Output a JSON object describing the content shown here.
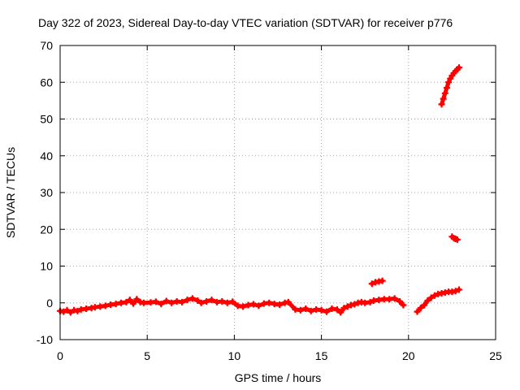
{
  "chart_data": {
    "type": "scatter",
    "title": "Day 322 of 2023, Sidereal Day-to-day VTEC variation (SDTVAR) for receiver p776",
    "xlabel": "GPS time / hours",
    "ylabel": "SDTVAR / TECUs",
    "xlim": [
      0,
      25
    ],
    "ylim": [
      -10,
      70
    ],
    "xticks": [
      "0",
      "5",
      "10",
      "15",
      "20",
      "25"
    ],
    "yticks": [
      "-10",
      "0",
      "10",
      "20",
      "30",
      "40",
      "50",
      "60",
      "70"
    ],
    "grid": true,
    "marker": "plus",
    "series": [
      {
        "color": "#ff0000",
        "points": [
          [
            0.0,
            -2.2
          ],
          [
            0.2,
            -2.4
          ],
          [
            0.4,
            -2.0
          ],
          [
            0.6,
            -2.6
          ],
          [
            0.8,
            -2.0
          ],
          [
            1.0,
            -2.2
          ],
          [
            1.2,
            -1.8
          ],
          [
            1.5,
            -1.6
          ],
          [
            1.8,
            -1.4
          ],
          [
            2.0,
            -1.2
          ],
          [
            2.3,
            -1.0
          ],
          [
            2.6,
            -0.8
          ],
          [
            2.9,
            -0.5
          ],
          [
            3.2,
            -0.3
          ],
          [
            3.5,
            0.0
          ],
          [
            3.8,
            0.2
          ],
          [
            4.0,
            0.8
          ],
          [
            4.2,
            -0.2
          ],
          [
            4.4,
            1.0
          ],
          [
            4.6,
            0.2
          ],
          [
            4.8,
            0.0
          ],
          [
            5.2,
            0.1
          ],
          [
            5.5,
            0.3
          ],
          [
            5.8,
            -0.3
          ],
          [
            6.1,
            0.5
          ],
          [
            6.4,
            0.0
          ],
          [
            6.7,
            0.4
          ],
          [
            7.0,
            0.2
          ],
          [
            7.3,
            0.8
          ],
          [
            7.6,
            1.2
          ],
          [
            7.9,
            0.6
          ],
          [
            8.1,
            0.0
          ],
          [
            8.4,
            0.4
          ],
          [
            8.7,
            0.8
          ],
          [
            9.0,
            0.2
          ],
          [
            9.3,
            0.4
          ],
          [
            9.6,
            0.0
          ],
          [
            9.9,
            0.3
          ],
          [
            10.2,
            -0.8
          ],
          [
            10.5,
            -1.0
          ],
          [
            10.8,
            -0.6
          ],
          [
            11.1,
            -0.4
          ],
          [
            11.4,
            -0.8
          ],
          [
            11.7,
            -0.2
          ],
          [
            12.0,
            0.0
          ],
          [
            12.3,
            -0.3
          ],
          [
            12.6,
            -0.5
          ],
          [
            12.9,
            0.0
          ],
          [
            13.1,
            0.2
          ],
          [
            13.5,
            -1.8
          ],
          [
            13.8,
            -2.0
          ],
          [
            14.1,
            -1.6
          ],
          [
            14.4,
            -2.2
          ],
          [
            14.7,
            -1.8
          ],
          [
            15.0,
            -2.0
          ],
          [
            15.3,
            -2.4
          ],
          [
            15.6,
            -1.6
          ],
          [
            15.9,
            -1.8
          ],
          [
            16.1,
            -2.6
          ],
          [
            16.3,
            -1.4
          ],
          [
            16.5,
            -1.0
          ],
          [
            16.7,
            -0.6
          ],
          [
            16.9,
            -0.4
          ],
          [
            17.1,
            0.0
          ],
          [
            17.3,
            0.2
          ],
          [
            17.5,
            0.0
          ],
          [
            17.8,
            0.2
          ],
          [
            18.0,
            0.6
          ],
          [
            18.3,
            0.8
          ],
          [
            18.6,
            1.0
          ],
          [
            18.9,
            1.0
          ],
          [
            19.2,
            1.2
          ],
          [
            19.5,
            0.4
          ],
          [
            19.7,
            -0.6
          ],
          [
            17.9,
            5.2
          ],
          [
            18.1,
            5.6
          ],
          [
            18.3,
            5.8
          ],
          [
            18.5,
            6.0
          ],
          [
            20.5,
            -2.4
          ],
          [
            20.7,
            -1.4
          ],
          [
            20.9,
            -0.6
          ],
          [
            21.1,
            0.6
          ],
          [
            21.3,
            1.4
          ],
          [
            21.5,
            2.0
          ],
          [
            21.7,
            2.4
          ],
          [
            21.9,
            2.6
          ],
          [
            22.1,
            2.8
          ],
          [
            22.3,
            3.0
          ],
          [
            22.5,
            3.0
          ],
          [
            22.7,
            3.2
          ],
          [
            22.9,
            3.6
          ],
          [
            21.9,
            54.0
          ],
          [
            22.0,
            55.5
          ],
          [
            22.1,
            57.0
          ],
          [
            22.2,
            58.5
          ],
          [
            22.3,
            60.0
          ],
          [
            22.4,
            61.0
          ],
          [
            22.5,
            61.8
          ],
          [
            22.6,
            62.5
          ],
          [
            22.7,
            63.0
          ],
          [
            22.8,
            63.5
          ],
          [
            22.9,
            64.0
          ],
          [
            22.5,
            18.0
          ],
          [
            22.6,
            17.6
          ],
          [
            22.7,
            17.4
          ],
          [
            22.8,
            17.2
          ]
        ]
      }
    ]
  }
}
